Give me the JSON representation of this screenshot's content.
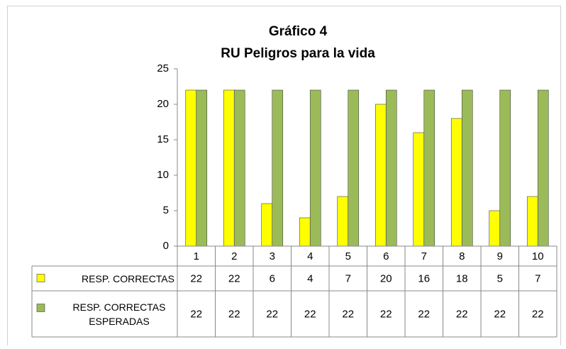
{
  "chart_data": {
    "type": "bar",
    "title": "Gráfico 4",
    "subtitle": "RU Peligros para la vida",
    "categories": [
      "1",
      "2",
      "3",
      "4",
      "5",
      "6",
      "7",
      "8",
      "9",
      "10"
    ],
    "series": [
      {
        "name": "RESP. CORRECTAS",
        "color": "#ffff00",
        "values": [
          22,
          22,
          6,
          4,
          7,
          20,
          16,
          18,
          5,
          7
        ]
      },
      {
        "name": "RESP. CORRECTAS ESPERADAS",
        "color": "#9bbb59",
        "values": [
          22,
          22,
          22,
          22,
          22,
          22,
          22,
          22,
          22,
          22
        ]
      }
    ],
    "ylim": [
      0,
      25
    ],
    "yticks": [
      0,
      5,
      10,
      15,
      20,
      25
    ],
    "grid": false,
    "data_table": true
  }
}
